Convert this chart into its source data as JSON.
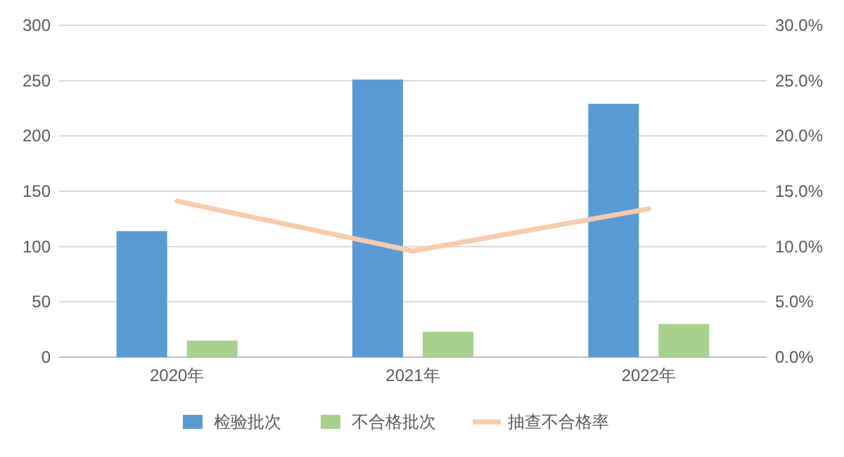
{
  "chart_data": {
    "type": "bar",
    "categories": [
      "2020年",
      "2021年",
      "2022年"
    ],
    "series": [
      {
        "name": "检验批次",
        "color": "#5b9bd5",
        "values": [
          114,
          251,
          229
        ]
      },
      {
        "name": "不合格批次",
        "color": "#a9d18e",
        "values": [
          15,
          23,
          30
        ]
      },
      {
        "name": "抽查不合格率",
        "color": "#f8cbad",
        "type": "line",
        "axis": "y2",
        "values": [
          14.1,
          9.6,
          13.4
        ]
      }
    ],
    "ylim": [
      0,
      300
    ],
    "yticks": [
      0,
      50,
      100,
      150,
      200,
      250,
      300
    ],
    "y2lim": [
      0,
      30
    ],
    "y2ticks": [
      {
        "value": 0,
        "label": "0.0%"
      },
      {
        "value": 5,
        "label": "5.0%"
      },
      {
        "value": 10,
        "label": "10.0%"
      },
      {
        "value": 15,
        "label": "15.0%"
      },
      {
        "value": 20,
        "label": "20.0%"
      },
      {
        "value": 25,
        "label": "25.0%"
      },
      {
        "value": 30,
        "label": "30.0%"
      }
    ],
    "grid": "y",
    "legend": "bottom",
    "marker": "none",
    "line_style": "solid"
  }
}
